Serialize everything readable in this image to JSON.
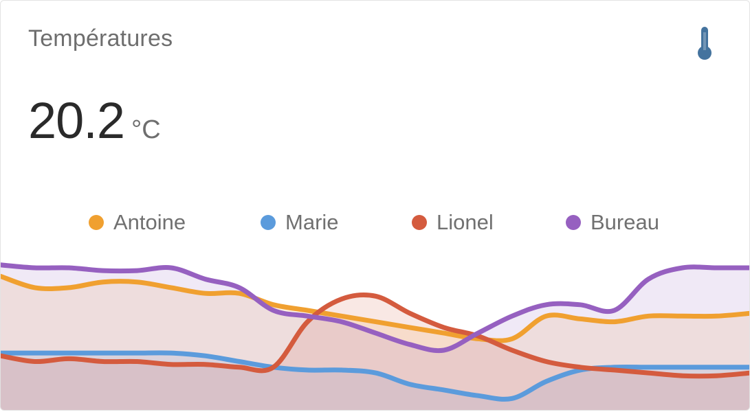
{
  "card": {
    "title": "Températures",
    "icon": "thermometer-icon",
    "icon_color": "#44739e",
    "value": "20.2",
    "unit": "°C"
  },
  "chart_data": {
    "type": "area",
    "x": [
      0,
      1,
      2,
      3,
      4,
      5,
      6,
      7,
      8,
      9,
      10,
      11,
      12,
      13,
      14,
      15,
      16,
      17,
      18,
      19,
      20,
      21,
      22
    ],
    "series": [
      {
        "name": "Antoine",
        "color": "#f0a030",
        "values": [
          21.6,
          21.2,
          21.2,
          21.4,
          21.4,
          21.2,
          21.0,
          21.0,
          20.6,
          20.4,
          20.2,
          20.0,
          19.8,
          19.6,
          19.4,
          19.4,
          20.2,
          20.1,
          20.0,
          20.2,
          20.2,
          20.2,
          20.3
        ]
      },
      {
        "name": "Marie",
        "color": "#5b9bdc",
        "values": [
          18.9,
          18.9,
          18.9,
          18.9,
          18.9,
          18.9,
          18.8,
          18.6,
          18.4,
          18.3,
          18.3,
          18.2,
          17.8,
          17.6,
          17.4,
          17.3,
          17.9,
          18.3,
          18.4,
          18.4,
          18.4,
          18.4,
          18.4
        ]
      },
      {
        "name": "Lionel",
        "color": "#d45b3e",
        "values": [
          18.8,
          18.6,
          18.7,
          18.6,
          18.6,
          18.5,
          18.5,
          18.4,
          18.4,
          20.0,
          20.8,
          20.9,
          20.3,
          19.8,
          19.5,
          19.0,
          18.6,
          18.4,
          18.3,
          18.2,
          18.1,
          18.1,
          18.2
        ]
      },
      {
        "name": "Bureau",
        "color": "#9660c0",
        "values": [
          22.0,
          21.9,
          21.9,
          21.8,
          21.8,
          21.9,
          21.5,
          21.2,
          20.4,
          20.2,
          20.0,
          19.6,
          19.2,
          19.0,
          19.6,
          20.2,
          20.6,
          20.6,
          20.4,
          21.5,
          21.9,
          21.9,
          21.9
        ]
      }
    ],
    "ylim": [
      16.8,
      22.6
    ],
    "grid": false,
    "legend_position": "top-center"
  }
}
